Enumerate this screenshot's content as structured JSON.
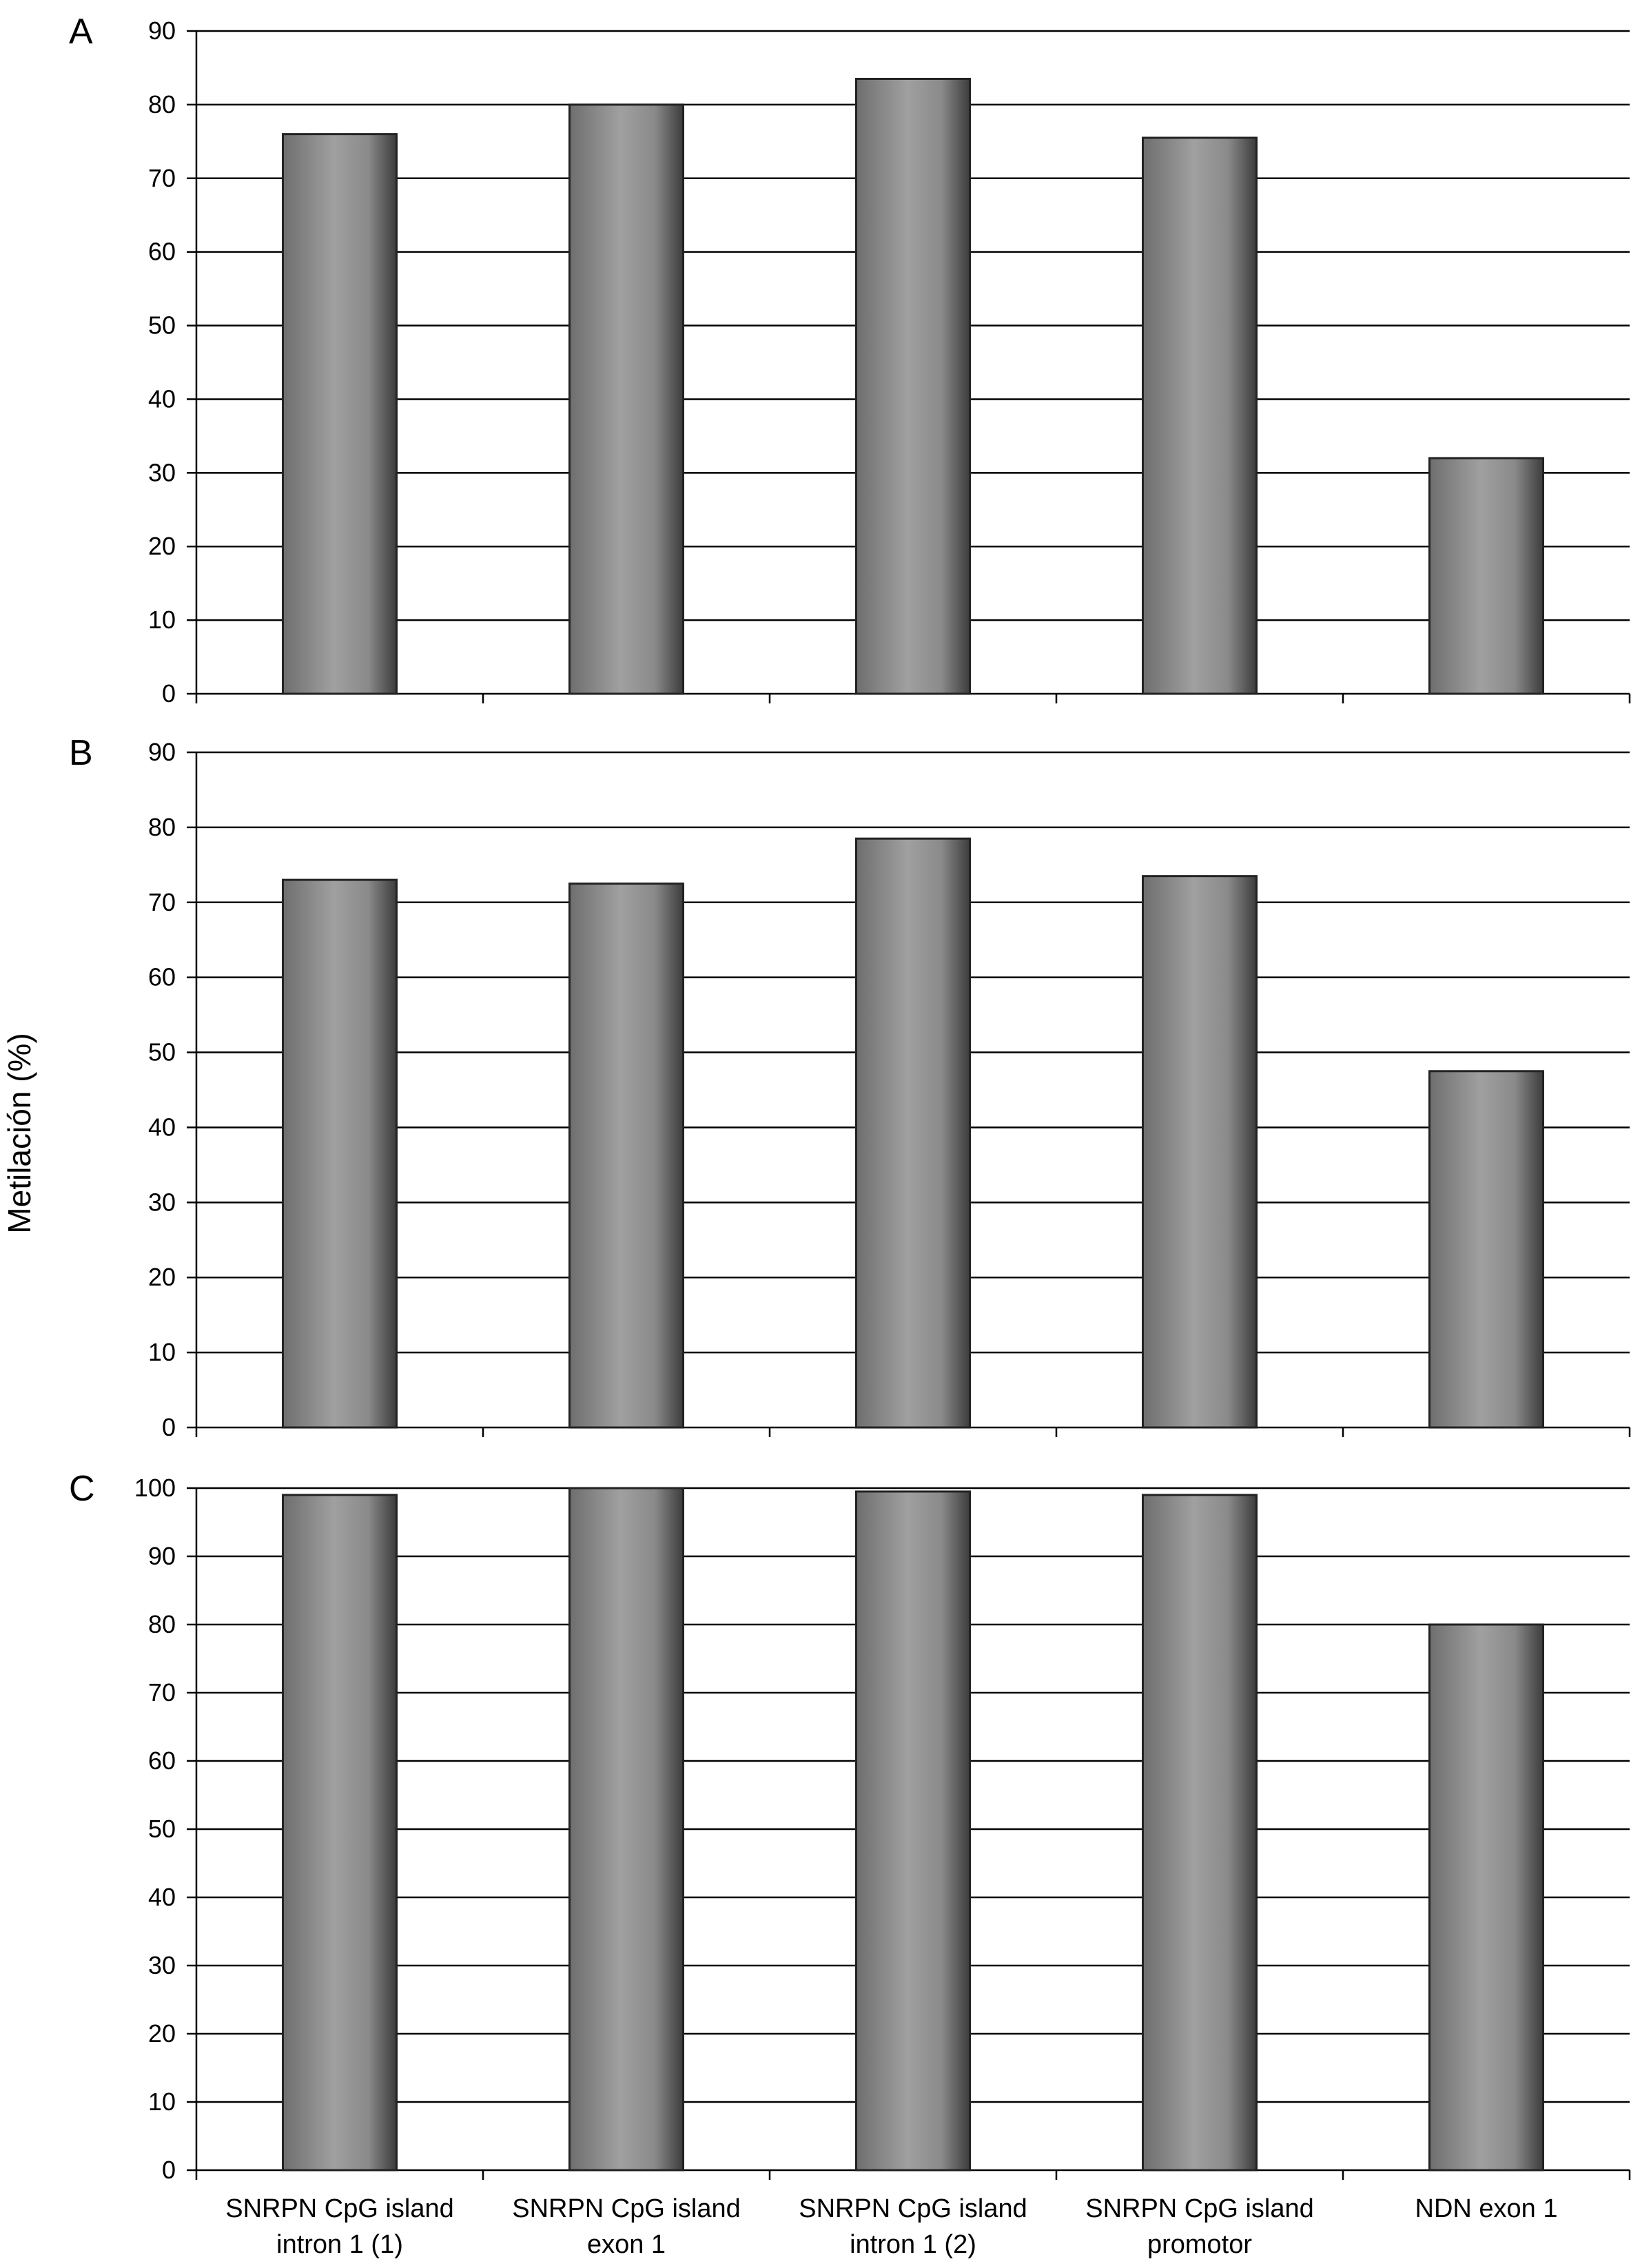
{
  "ylabel": "Metilación (%)",
  "categories": [
    [
      "SNRPN CpG island",
      "intron 1 (1)"
    ],
    [
      "SNRPN CpG island",
      "exon 1"
    ],
    [
      "SNRPN CpG island",
      "intron 1 (2)"
    ],
    [
      "SNRPN CpG island",
      "promotor"
    ],
    [
      "NDN exon 1"
    ]
  ],
  "colors": {
    "bar_edge": "#4a4a4a",
    "bar_light": "#a0a0a0",
    "bar_dark": "#3c3c3c",
    "grid": "#000000"
  },
  "chart_data": [
    {
      "type": "bar",
      "panel": "A",
      "categories": [
        "SNRPN CpG island intron 1 (1)",
        "SNRPN CpG island exon 1",
        "SNRPN CpG island intron 1 (2)",
        "SNRPN CpG island promotor",
        "NDN exon 1"
      ],
      "values": [
        76,
        80,
        83.5,
        75.5,
        32
      ],
      "ylim": [
        0,
        90
      ],
      "yticks": [
        0,
        10,
        20,
        30,
        40,
        50,
        60,
        70,
        80,
        90
      ],
      "grid": true
    },
    {
      "type": "bar",
      "panel": "B",
      "categories": [
        "SNRPN CpG island intron 1 (1)",
        "SNRPN CpG island exon 1",
        "SNRPN CpG island intron 1 (2)",
        "SNRPN CpG island promotor",
        "NDN exon 1"
      ],
      "values": [
        73,
        72.5,
        78.5,
        73.5,
        47.5
      ],
      "ylim": [
        0,
        90
      ],
      "yticks": [
        0,
        10,
        20,
        30,
        40,
        50,
        60,
        70,
        80,
        90
      ],
      "grid": true
    },
    {
      "type": "bar",
      "panel": "C",
      "categories": [
        "SNRPN CpG island intron 1 (1)",
        "SNRPN CpG island exon 1",
        "SNRPN CpG island intron 1 (2)",
        "SNRPN CpG island promotor",
        "NDN exon 1"
      ],
      "values": [
        99,
        100,
        99.5,
        99,
        80
      ],
      "ylim": [
        0,
        100
      ],
      "yticks": [
        0,
        10,
        20,
        30,
        40,
        50,
        60,
        70,
        80,
        90,
        100
      ],
      "grid": true
    }
  ]
}
